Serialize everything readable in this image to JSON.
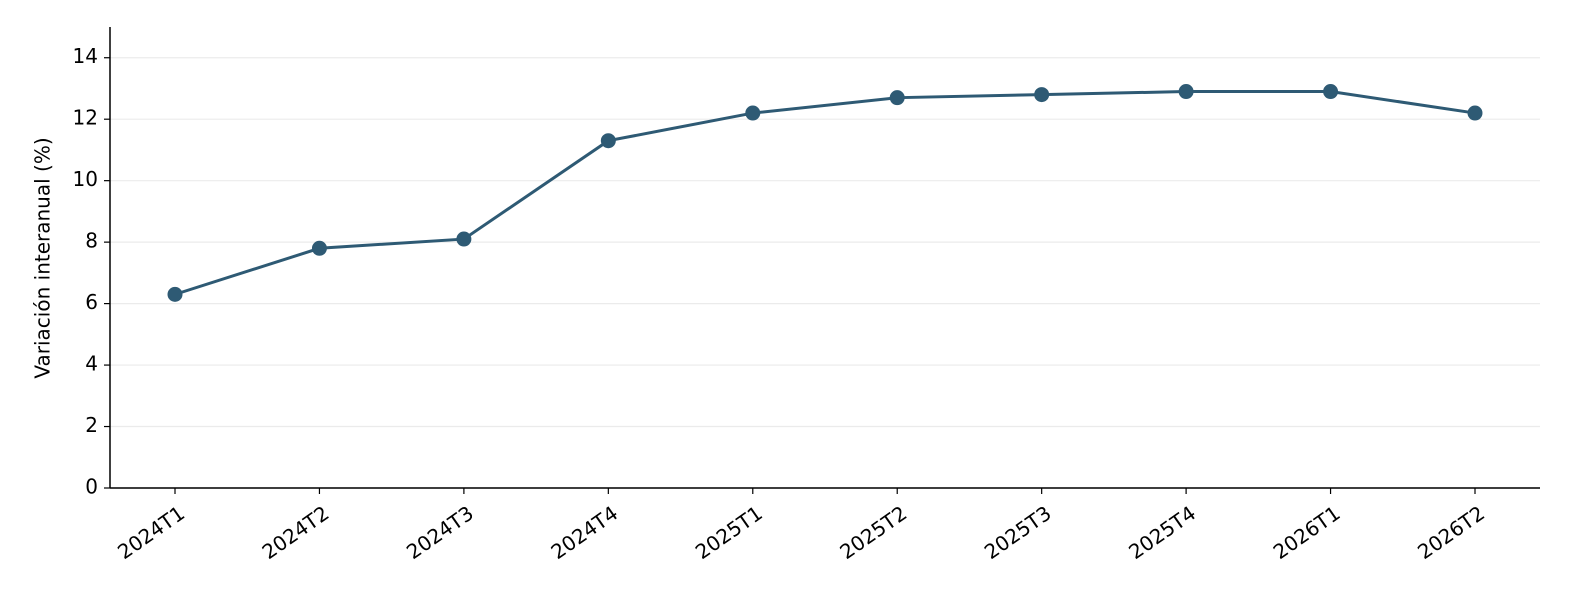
{
  "chart_data": {
    "type": "line",
    "y_label": "Variación interanual (%)",
    "categories": [
      "2024T1",
      "2024T2",
      "2024T3",
      "2024T4",
      "2025T1",
      "2025T2",
      "2025T3",
      "2025T4",
      "2026T1",
      "2026T2"
    ],
    "series": [
      {
        "color": "#2e5a74",
        "values": [
          6.3,
          7.8,
          8.1,
          11.3,
          12.2,
          12.7,
          12.8,
          12.9,
          12.9,
          12.2
        ]
      }
    ],
    "ylim": [
      0,
      15
    ],
    "yticks": [
      0,
      2,
      4,
      6,
      8,
      10,
      12,
      14
    ],
    "grid": true
  }
}
